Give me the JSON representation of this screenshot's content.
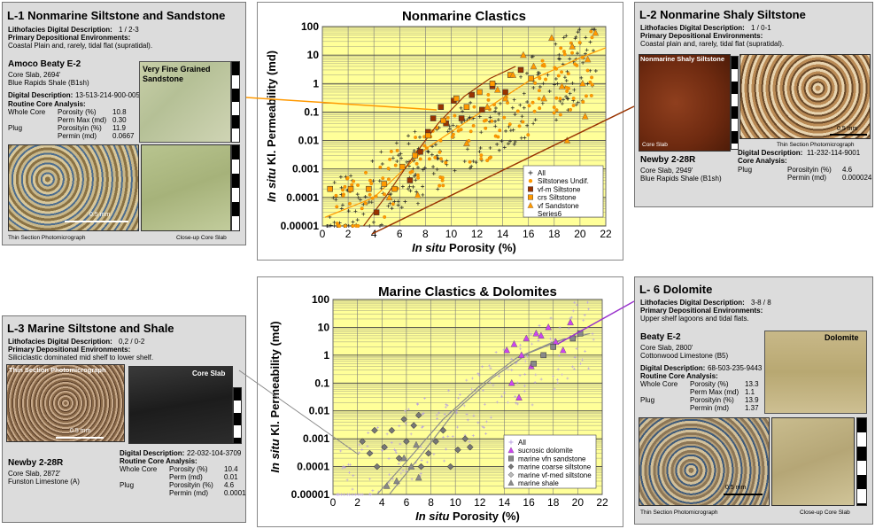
{
  "colors": {
    "plot_bg": "#ffff99",
    "grid": "#7a7a7a",
    "orange": "#ff9900",
    "brown": "#993300",
    "pink": "#cc44ee"
  },
  "l1": {
    "title": "L-1  Nonmarine Siltstone and Sandstone",
    "lith_label": "Lithofacies Digital Description:",
    "lith_value": "1 / 2-3",
    "env_label": "Primary Depositional Environments:",
    "env_value": "Coastal Plain and, rarely, tidal flat (supratidal).",
    "well": "Amoco Beaty E-2",
    "core": "Core Slab, 2694'",
    "formation": "Blue Rapids Shale (B1sh)",
    "digital_label": "Digital Description:",
    "digital_value": "13-513-214-900-005",
    "routine": "Routine Core Analysis:",
    "rows": [
      [
        "Whole Core",
        "Porosity (%)",
        "10.8"
      ],
      [
        "",
        "Perm Max (md)",
        "0.30"
      ],
      [
        "Plug",
        "Porosityin (%)",
        "11.9"
      ],
      [
        "",
        "Permin (md)",
        "0.0667"
      ]
    ],
    "photo_label": "Very Fine Grained Sandstone",
    "scale": "0.5 mm",
    "cap_left": "Thin Section Photomicrograph",
    "cap_right": "Close-up Core Slab"
  },
  "l2": {
    "title": "L-2  Nonmarine Shaly Siltstone",
    "lith_label": "Lithofacies Digital Description:",
    "lith_value": "1 / 0-1",
    "env_label": "Primary Depositional Environments:",
    "env_value": "Coastal plain and, rarely, tidal flat (supratidal).",
    "photo_label": "Nonmarine Shaly Siltstone",
    "core_cap": "Core Slab",
    "thin_cap": "Thin Section Photomicrograph",
    "scale": "0.5 mm",
    "well": "Newby 2-28R",
    "core": "Core Slab, 2949'",
    "formation": "Blue Rapids Shale (B1sh)",
    "digital_label": "Digital Description:",
    "digital_value": "11-232-114-9001",
    "routine": "Core Analysis:",
    "rows": [
      [
        "Plug",
        "Porosityin (%)",
        "4.6"
      ],
      [
        "",
        "Permin (md)",
        "0.000024"
      ]
    ]
  },
  "l3": {
    "title": "L-3  Marine Siltstone and Shale",
    "lith_label": "Lithofacies Digital Description:",
    "lith_value": "0,2 / 0-2",
    "env_label": "Primary Depositional Environments:",
    "env_value": "Siliciclastic dominated mid shelf to lower shelf.",
    "thin_label": "Thin Section Photomicrograph",
    "core_label": "Core Slab",
    "scale": "0.5 mm",
    "well": "Newby 2-28R",
    "core": "Core Slab, 2872'",
    "formation": "Funston Limestone (A)",
    "digital_label": "Digital Description:",
    "digital_value": "22-032-104-3709",
    "routine": "Routine Core Analysis:",
    "rows": [
      [
        "Whole Core",
        "Porosity (%)",
        "10.4"
      ],
      [
        "",
        "Perm (md)",
        "0.01"
      ],
      [
        "Plug",
        "Porosityin (%)",
        "4.6"
      ],
      [
        "",
        "Permin (md)",
        "0.0001"
      ]
    ]
  },
  "l6": {
    "title": "L- 6  Dolomite",
    "lith_label": "Lithofacies Digital Description:",
    "lith_value": "3-8 / 8",
    "env_label": "Primary Depositional Environments:",
    "env_value": "Upper shelf lagoons and tidal flats.",
    "well": "Beaty E-2",
    "core": "Core Slab, 2800'",
    "formation": "Cottonwood Limestone (B5)",
    "digital_label": "Digital Description:",
    "digital_value": "68-503-235-9443",
    "routine": "Routine Core Analysis:",
    "rows": [
      [
        "Whole Core",
        "Porosity (%)",
        "13.3"
      ],
      [
        "",
        "Perm Max (md)",
        "1.1"
      ],
      [
        "Plug",
        "Porosityin (%)",
        "13.9"
      ],
      [
        "",
        "Permin (md)",
        "1.37"
      ]
    ],
    "photo_label": "Dolomite",
    "scale": "0.5 mm",
    "cap_left": "Thin Section Photomicrograph",
    "cap_right": "Close-up Core Slab"
  },
  "chart_data": [
    {
      "type": "scatter",
      "title": "Nonmarine Clastics",
      "xlabel_italic": "In situ",
      "xlabel_rest": " Porosity (%)",
      "ylabel_italic": "In situ",
      "ylabel_rest": " Kl. Permeability (md)",
      "y_scale": "log",
      "xlim": [
        0,
        22
      ],
      "ylim": [
        1e-05,
        100
      ],
      "x_ticks": [
        "0",
        "2",
        "4",
        "6",
        "8",
        "10",
        "12",
        "14",
        "16",
        "18",
        "20",
        "22"
      ],
      "y_ticks": [
        "0.00001",
        "0.0001",
        "0.001",
        "0.01",
        "0.1",
        "1",
        "10",
        "100"
      ],
      "grid": true,
      "legend_position": "bottom-right",
      "legend": [
        "All",
        "Siltstones Undif.",
        "vf-m Siltstone",
        "crs Siltstone",
        "vf Sandstone",
        "Series6"
      ],
      "series": [
        {
          "name": "vf-m Siltstone",
          "marker": "square",
          "color": "#993300",
          "points": [
            [
              4.2,
              3e-05
            ],
            [
              6.8,
              0.0004
            ],
            [
              7.6,
              0.004
            ],
            [
              8.2,
              0.02
            ],
            [
              8.6,
              0.06
            ],
            [
              9.2,
              0.15
            ],
            [
              9.6,
              0.04
            ],
            [
              10.2,
              0.25
            ],
            [
              10.8,
              0.06
            ],
            [
              11.6,
              0.4
            ],
            [
              12.4,
              0.12
            ],
            [
              13.2,
              0.8
            ],
            [
              14.2,
              0.5
            ],
            [
              15.4,
              3
            ]
          ]
        },
        {
          "name": "crs Siltstone",
          "marker": "square",
          "color": "#ff9900",
          "points": [
            [
              0.6,
              0.0002
            ],
            [
              2.2,
              0.0002
            ],
            [
              3.6,
              0.0002
            ],
            [
              4.8,
              0.0003
            ],
            [
              5.6,
              0.0002
            ],
            [
              6.2,
              0.0012
            ],
            [
              7.2,
              0.003
            ],
            [
              8.2,
              0.015
            ],
            [
              9.4,
              0.05
            ],
            [
              10.4,
              0.3
            ],
            [
              11.2,
              0.15
            ],
            [
              12.2,
              0.5
            ],
            [
              13.2,
              1
            ],
            [
              14.6,
              2
            ],
            [
              16.2,
              1.5
            ]
          ]
        },
        {
          "name": "vf Sandstone",
          "marker": "triangle",
          "color": "#ff9900",
          "points": [
            [
              5.2,
              0.0001
            ],
            [
              7.4,
              0.00012
            ],
            [
              11.2,
              0.008
            ],
            [
              12.8,
              0.15
            ],
            [
              13.6,
              0.6
            ],
            [
              14.2,
              0.3
            ],
            [
              14.8,
              2
            ],
            [
              15.6,
              10
            ],
            [
              16.4,
              4
            ],
            [
              17.2,
              0.3
            ],
            [
              17.8,
              40
            ],
            [
              18.6,
              0.8
            ],
            [
              19.4,
              20
            ],
            [
              20.2,
              1
            ],
            [
              20.6,
              7
            ],
            [
              21.2,
              60
            ],
            [
              20.4,
              0.07
            ],
            [
              19,
              0.01
            ]
          ]
        }
      ],
      "trend_lines": [
        {
          "color": "#ff9900",
          "points": [
            [
              0.2,
              2e-05
            ],
            [
              4,
              0.0001
            ],
            [
              8,
              0.005
            ],
            [
              12,
              0.08
            ],
            [
              16,
              1.2
            ],
            [
              20,
              8
            ],
            [
              22,
              18
            ]
          ]
        },
        {
          "color": "#993300",
          "points": [
            [
              3.2,
              1e-05
            ],
            [
              5,
              0.00012
            ],
            [
              7,
              0.0025
            ],
            [
              9,
              0.04
            ],
            [
              11,
              0.35
            ],
            [
              13,
              1.5
            ],
            [
              15,
              4
            ]
          ]
        }
      ]
    },
    {
      "type": "scatter",
      "title": "Marine Clastics & Dolomites",
      "xlabel_italic": "In situ",
      "xlabel_rest": " Porosity (%)",
      "ylabel_italic": "In situ",
      "ylabel_rest": " Kl. Permeability (md)",
      "y_scale": "log",
      "xlim": [
        0,
        22
      ],
      "ylim": [
        1e-05,
        100
      ],
      "x_ticks": [
        "0",
        "2",
        "4",
        "6",
        "8",
        "10",
        "12",
        "14",
        "16",
        "18",
        "20",
        "22"
      ],
      "y_ticks": [
        "0.00001",
        "0.0001",
        "0.001",
        "0.01",
        "0.1",
        "1",
        "10",
        "100"
      ],
      "grid": true,
      "legend_position": "bottom-right",
      "legend": [
        "All",
        "sucrosic dolomite",
        "marine  vfn sandstone",
        "marine coarse siltstone",
        "marine vf-med siltstone",
        "marine shale"
      ],
      "series": [
        {
          "name": "sucrosic dolomite",
          "marker": "triangle",
          "color": "#cc44ee",
          "points": [
            [
              14.2,
              1.5
            ],
            [
              14.8,
              2.5
            ],
            [
              15.4,
              1
            ],
            [
              15.8,
              4
            ],
            [
              16.2,
              0.4
            ],
            [
              16.6,
              6
            ],
            [
              17,
              5
            ],
            [
              17.6,
              10
            ],
            [
              18.2,
              3
            ],
            [
              18.8,
              1.5
            ],
            [
              19.4,
              15
            ],
            [
              14.6,
              0.1
            ],
            [
              15.2,
              0.03
            ]
          ]
        },
        {
          "name": "marine  vfn sandstone",
          "marker": "square",
          "color": "#888888",
          "points": [
            [
              16.4,
              0.5
            ],
            [
              17.2,
              1
            ],
            [
              18,
              2
            ],
            [
              19.6,
              4
            ],
            [
              20.2,
              6
            ]
          ]
        },
        {
          "name": "marine coarse siltstone",
          "marker": "diamond",
          "color": "#777777",
          "points": [
            [
              2.4,
              0.0008
            ],
            [
              3,
              0.0003
            ],
            [
              3.6,
              0.0001
            ],
            [
              4.2,
              0.0005
            ],
            [
              4.8,
              0.002
            ],
            [
              5.4,
              0.0002
            ],
            [
              6,
              0.0008
            ],
            [
              6.6,
              0.003
            ],
            [
              7.2,
              0.0001
            ],
            [
              7.8,
              0.0003
            ],
            [
              8.4,
              0.0008
            ],
            [
              9,
              0.002
            ],
            [
              9.6,
              0.0001
            ],
            [
              10.2,
              0.0004
            ],
            [
              10.8,
              0.001
            ],
            [
              11.2,
              0.0005
            ],
            [
              3.4,
              0.002
            ],
            [
              5.8,
              0.005
            ],
            [
              7,
              0.007
            ]
          ]
        },
        {
          "name": "marine shale",
          "marker": "triangle",
          "color": "#888888",
          "points": [
            [
              4.4,
              2e-05
            ],
            [
              5.2,
              3e-05
            ],
            [
              5.8,
              0.0002
            ],
            [
              6.4,
              0.0001
            ],
            [
              7,
              4e-05
            ],
            [
              6.8,
              0.0006
            ]
          ]
        }
      ],
      "trend_lines": [
        {
          "color": "#8c8c8c",
          "points": [
            [
              3.6,
              1e-05
            ],
            [
              6,
              0.00015
            ],
            [
              9,
              0.005
            ],
            [
              12,
              0.08
            ],
            [
              15,
              0.8
            ],
            [
              18,
              3
            ],
            [
              21,
              6
            ]
          ]
        },
        {
          "color": "#8c8c8c",
          "points": [
            [
              4.6,
              1e-05
            ],
            [
              7,
              0.0002
            ],
            [
              10,
              0.01
            ],
            [
              13,
              0.15
            ],
            [
              16,
              1.2
            ],
            [
              19,
              4
            ]
          ]
        }
      ]
    }
  ]
}
